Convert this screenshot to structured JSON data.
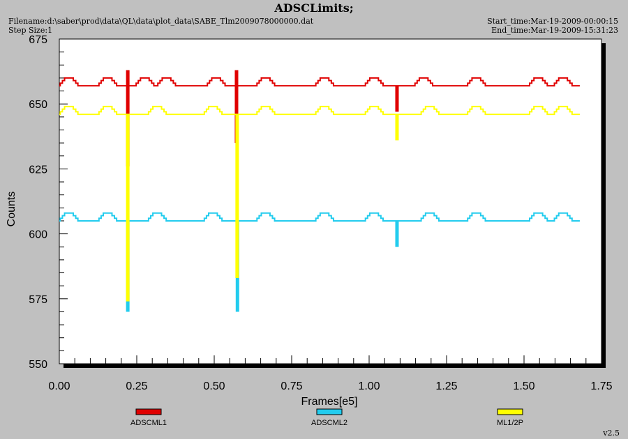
{
  "header": {
    "title": "ADSCLimits;",
    "filename": "Filename:d:\\saber\\prod\\data\\QL\\data\\plot_data\\SABE_Tlm2009078000000.dat",
    "step_size": "Step Size:1",
    "start_time": "Start_time:Mar-19-2009-00:00:15",
    "end_time": "End_time:Mar-19-2009-15:31:23"
  },
  "footer": {
    "version": "v2.5"
  },
  "colors": {
    "background": "#c0c0c0",
    "plot_bg": "#ffffff",
    "ADSCML1": "#e00000",
    "ADSCML2": "#22ccee",
    "ML1/2P": "#ffff00"
  },
  "chart_data": {
    "type": "line",
    "xlabel": "Frames[e5]",
    "ylabel": "Counts",
    "xlim": [
      0,
      1.75
    ],
    "ylim": [
      550,
      675
    ],
    "x_ticks": [
      "0.00",
      "0.25",
      "0.50",
      "0.75",
      "1.00",
      "1.25",
      "1.50",
      "1.75"
    ],
    "y_ticks": [
      "550",
      "575",
      "600",
      "625",
      "650",
      "675"
    ],
    "legend_position": "bottom",
    "series": [
      {
        "name": "ADSCML1",
        "baseline": 657,
        "x_end": 1.68,
        "bump_peak": 660,
        "bump_centers": [
          0.035,
          0.16,
          0.28,
          0.35,
          0.51,
          0.67,
          0.86,
          1.02,
          1.18,
          1.35,
          1.55,
          1.63
        ],
        "spikes": [
          {
            "x": 0.221,
            "min": 626,
            "max": 663
          },
          {
            "x": 0.572,
            "min": 635,
            "max": 663
          },
          {
            "x": 1.09,
            "min": 647,
            "max": 657
          }
        ]
      },
      {
        "name": "ADSCML2",
        "baseline": 605,
        "x_end": 1.68,
        "bump_peak": 608,
        "bump_centers": [
          0.035,
          0.16,
          0.32,
          0.5,
          0.67,
          0.86,
          1.02,
          1.2,
          1.35,
          1.55,
          1.63
        ],
        "spikes": [
          {
            "x": 0.221,
            "min": 570,
            "max": 605
          },
          {
            "x": 0.575,
            "min": 570,
            "max": 605
          },
          {
            "x": 1.09,
            "min": 595,
            "max": 605
          }
        ]
      },
      {
        "name": "ML1/2P",
        "baseline": 646,
        "x_end": 1.68,
        "bump_peak": 649,
        "bump_centers": [
          0.035,
          0.16,
          0.32,
          0.5,
          0.67,
          0.86,
          1.02,
          1.2,
          1.35,
          1.55,
          1.63
        ],
        "spikes": [
          {
            "x": 0.221,
            "min": 574,
            "max": 646
          },
          {
            "x": 0.574,
            "min": 583,
            "max": 646
          },
          {
            "x": 1.09,
            "min": 636,
            "max": 646
          }
        ]
      }
    ]
  }
}
